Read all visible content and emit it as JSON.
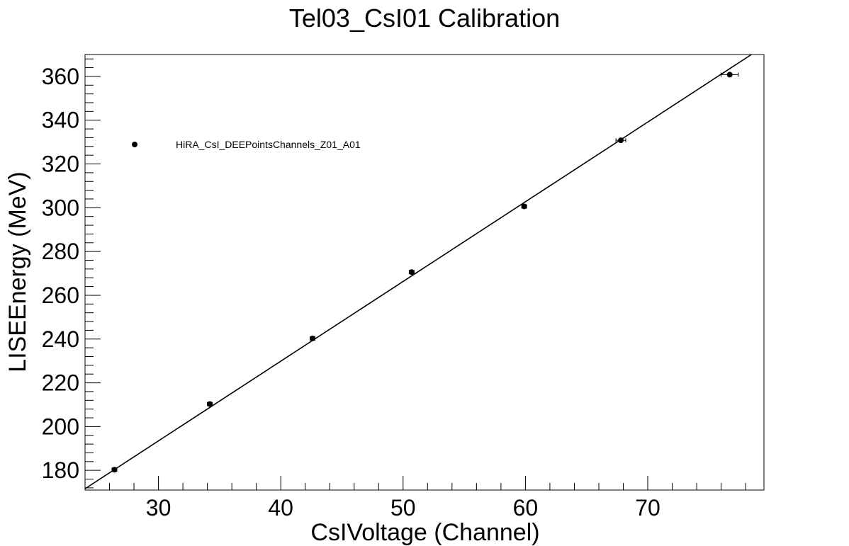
{
  "chart_data": {
    "type": "scatter",
    "title": "Tel03_CsI01 Calibration",
    "xlabel": "CsIVoltage (Channel)",
    "ylabel": "LISEEnergy (MeV)",
    "xlim": [
      24,
      79.5
    ],
    "ylim": [
      171,
      370
    ],
    "x_ticks": [
      30,
      40,
      50,
      60,
      70
    ],
    "y_ticks": [
      180,
      200,
      220,
      240,
      260,
      280,
      300,
      320,
      340,
      360
    ],
    "grid": false,
    "legend_position": "top-left",
    "series": [
      {
        "name": "HiRA_CsI_DEEPointsChannels_Z01_A01",
        "marker": "circle",
        "color": "#000000",
        "points": [
          {
            "x": 26.4,
            "y": 180.3,
            "xerr": 0.2
          },
          {
            "x": 34.2,
            "y": 210.3,
            "xerr": 0.2
          },
          {
            "x": 42.6,
            "y": 240.3,
            "xerr": 0.2
          },
          {
            "x": 50.7,
            "y": 270.6,
            "xerr": 0.2
          },
          {
            "x": 59.9,
            "y": 300.6,
            "xerr": 0.2
          },
          {
            "x": 67.8,
            "y": 330.8,
            "xerr": 0.4
          },
          {
            "x": 76.7,
            "y": 360.8,
            "xerr": 0.7
          }
        ]
      }
    ],
    "fit_line": {
      "color": "#000000",
      "slope": 3.642,
      "intercept": 84.2,
      "x_range": [
        24,
        79.5
      ]
    }
  }
}
